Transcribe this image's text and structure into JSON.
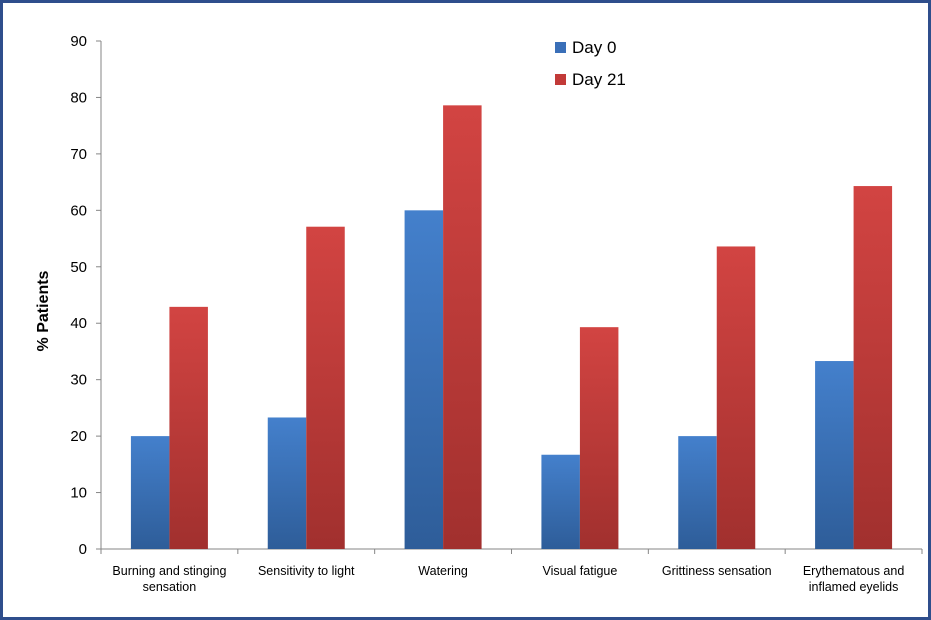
{
  "chart_data": {
    "type": "bar",
    "title": "",
    "xlabel": "",
    "ylabel": "% Patients",
    "ylim": [
      0,
      90
    ],
    "yticks": [
      0,
      10,
      20,
      30,
      40,
      50,
      60,
      70,
      80,
      90
    ],
    "grid": false,
    "legend_position": "top-center",
    "categories": [
      [
        "Burning and stinging",
        "sensation"
      ],
      [
        "Sensitivity to light"
      ],
      [
        "Watering"
      ],
      [
        "Visual fatigue"
      ],
      [
        "Grittiness sensation"
      ],
      [
        "Erythematous and",
        "inflamed eyelids"
      ]
    ],
    "series": [
      {
        "name": "Day 0",
        "color": "#3A6FB8",
        "values": [
          20.0,
          23.3,
          60.0,
          16.7,
          20.0,
          33.3
        ]
      },
      {
        "name": "Day 21",
        "color": "#C23A38",
        "values": [
          42.9,
          57.1,
          78.6,
          39.3,
          53.6,
          64.3
        ]
      }
    ]
  },
  "colors": {
    "frame_border": "#2F4E8C",
    "axis": "#868686"
  }
}
